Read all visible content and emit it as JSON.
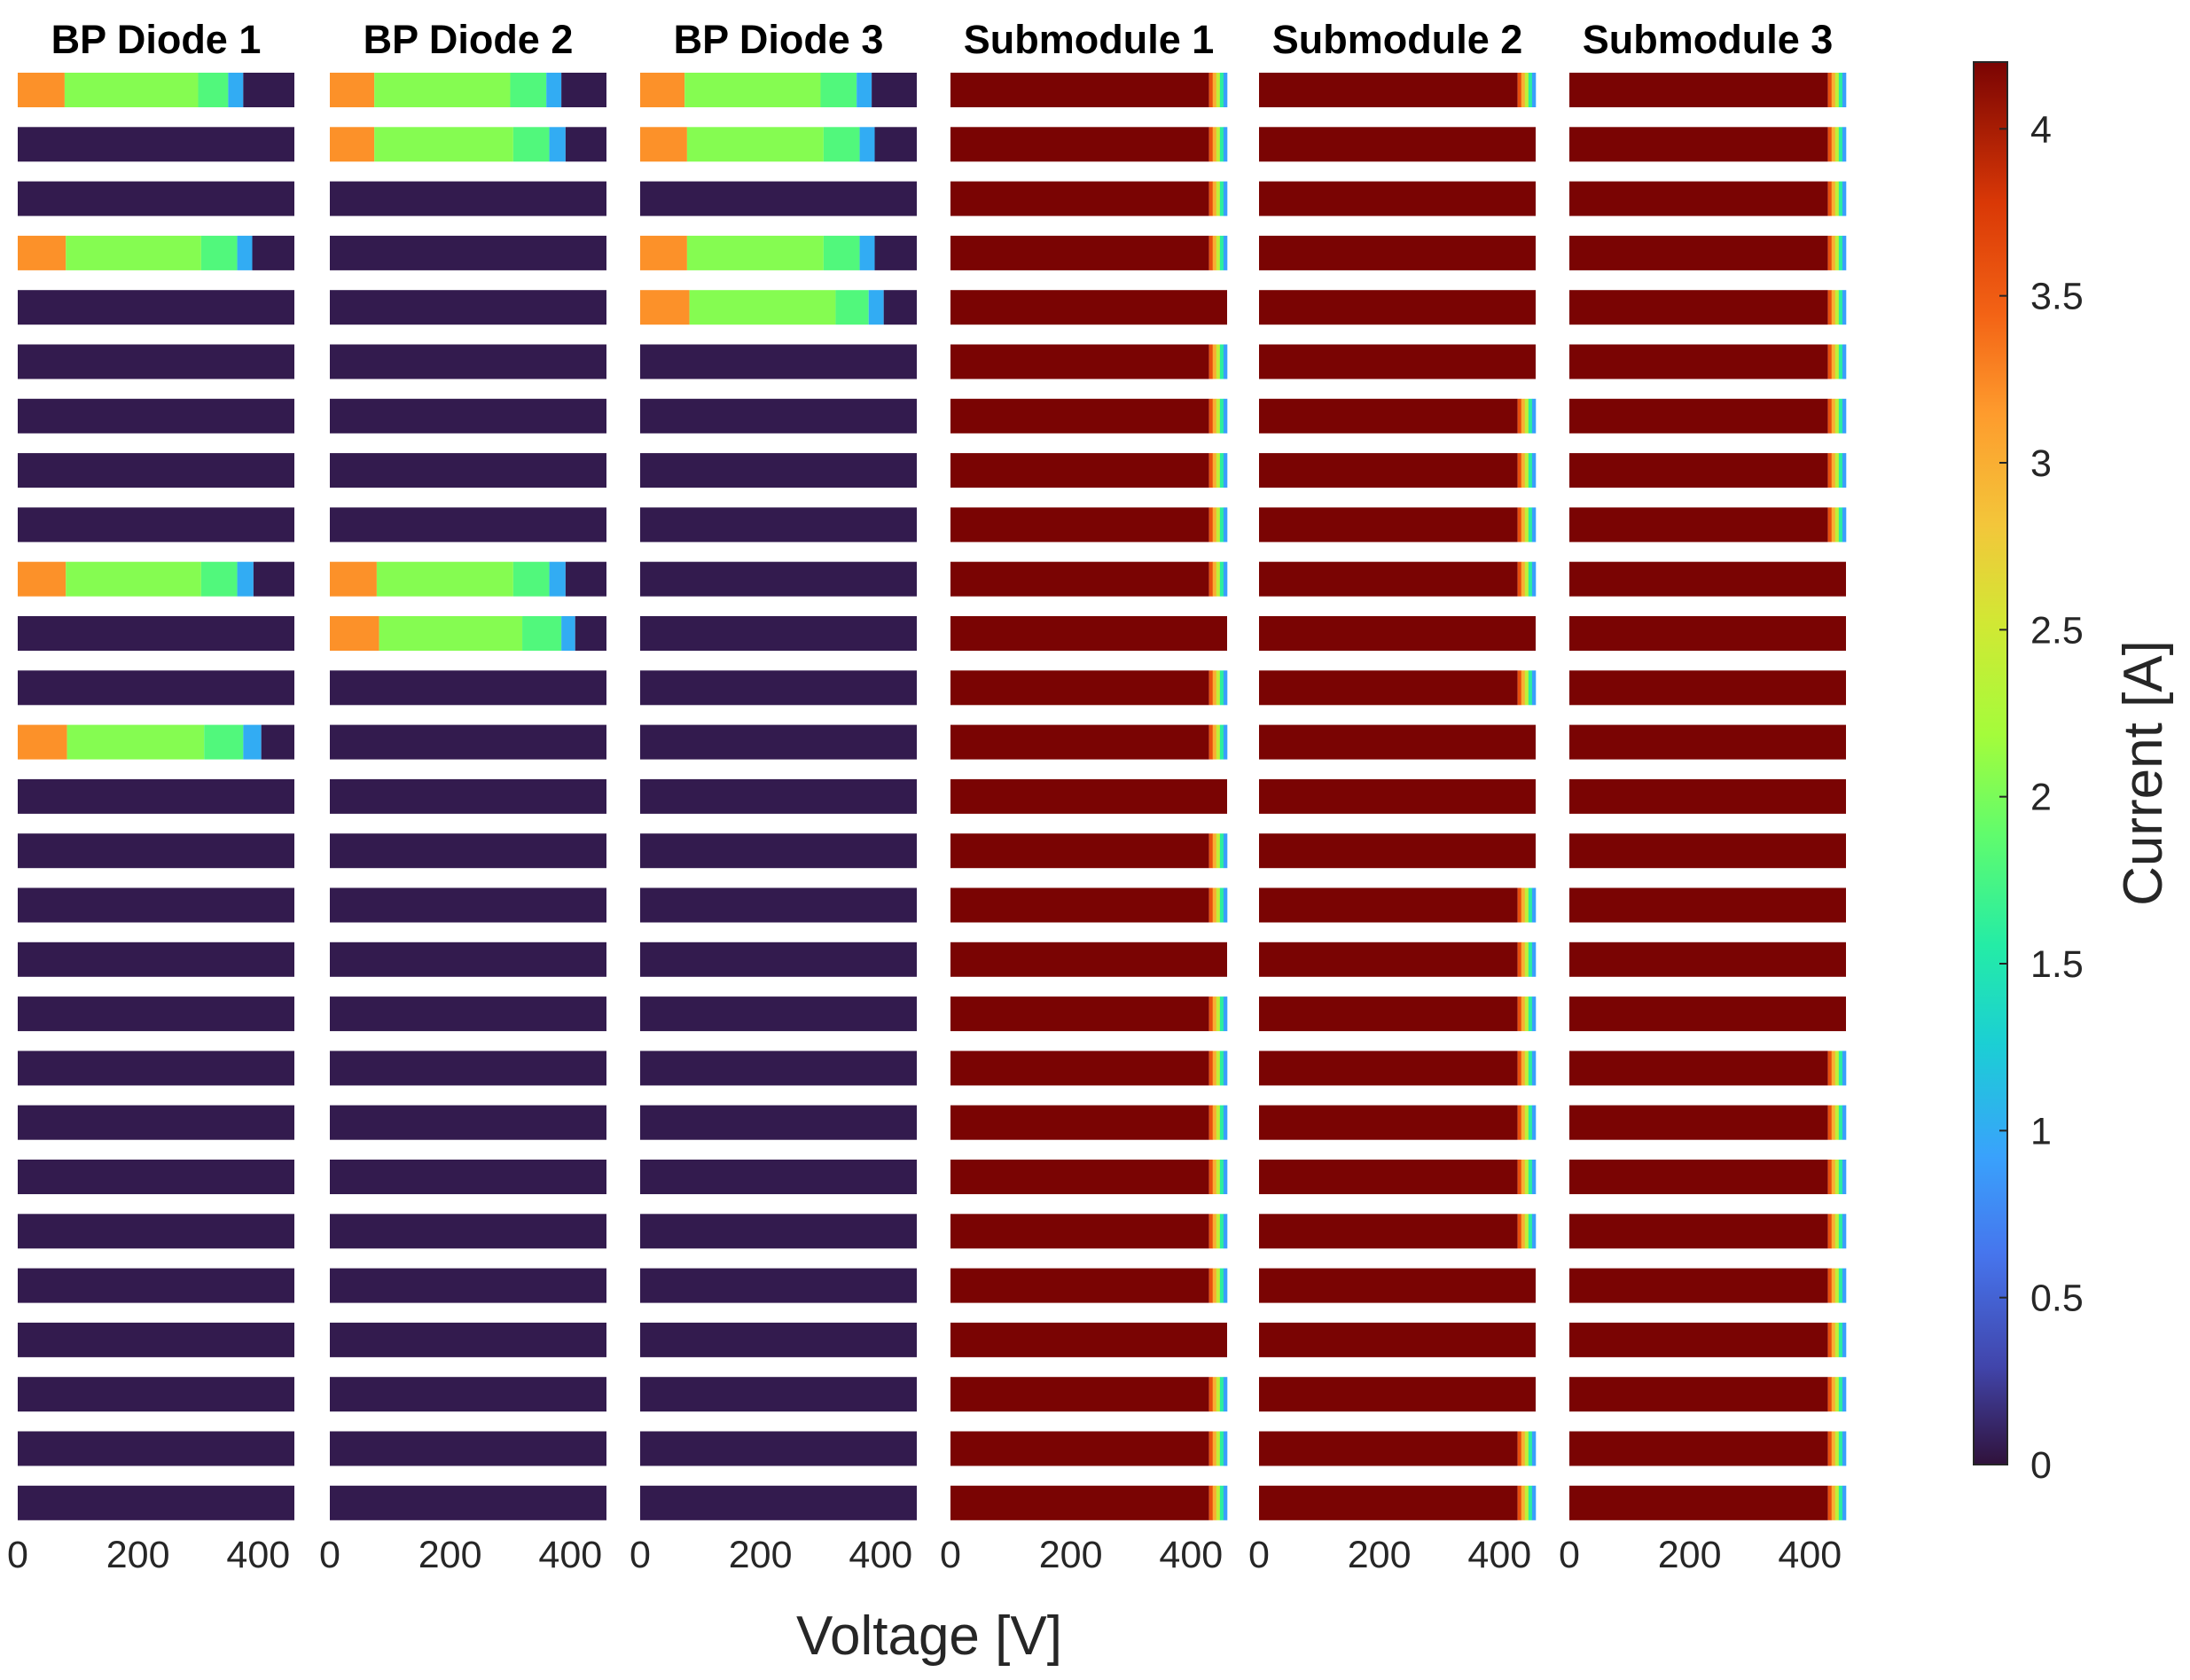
{
  "chart_data": {
    "type": "heatmap",
    "xlabel": "Voltage [V]",
    "colorbar": {
      "label": "Current [A]",
      "range": [
        0,
        4.2
      ],
      "ticks": [
        "0",
        "0.5",
        "1",
        "1.5",
        "2",
        "2.5",
        "3",
        "3.5",
        "4"
      ],
      "colormap": "turbo"
    },
    "x_range": [
      0,
      460
    ],
    "x_ticks": [
      "0",
      "200",
      "400"
    ],
    "rows_per_panel": 27,
    "panels": [
      {
        "title": "BP Diode 1",
        "kind": "diode",
        "active_rows": [
          0,
          3,
          9,
          12
        ],
        "rows": [
          {
            "row": 0,
            "segments": [
              {
                "v0": 0,
                "v1": 78,
                "current": 3.2
              },
              {
                "v0": 78,
                "v1": 300,
                "current": 2.05
              },
              {
                "v0": 300,
                "v1": 350,
                "current": 1.8
              },
              {
                "v0": 350,
                "v1": 375,
                "current": 1.0
              },
              {
                "v0": 375,
                "v1": 460,
                "current": 0.05
              }
            ]
          },
          {
            "row": 3,
            "segments": [
              {
                "v0": 0,
                "v1": 80,
                "current": 3.2
              },
              {
                "v0": 80,
                "v1": 305,
                "current": 2.05
              },
              {
                "v0": 305,
                "v1": 365,
                "current": 1.8
              },
              {
                "v0": 365,
                "v1": 390,
                "current": 1.0
              },
              {
                "v0": 390,
                "v1": 460,
                "current": 0.05
              }
            ]
          },
          {
            "row": 9,
            "segments": [
              {
                "v0": 0,
                "v1": 80,
                "current": 3.2
              },
              {
                "v0": 80,
                "v1": 305,
                "current": 2.05
              },
              {
                "v0": 305,
                "v1": 365,
                "current": 1.8
              },
              {
                "v0": 365,
                "v1": 392,
                "current": 1.0
              },
              {
                "v0": 392,
                "v1": 460,
                "current": 0.05
              }
            ]
          },
          {
            "row": 12,
            "segments": [
              {
                "v0": 0,
                "v1": 82,
                "current": 3.2
              },
              {
                "v0": 82,
                "v1": 310,
                "current": 2.05
              },
              {
                "v0": 310,
                "v1": 375,
                "current": 1.8
              },
              {
                "v0": 375,
                "v1": 405,
                "current": 1.0
              },
              {
                "v0": 405,
                "v1": 460,
                "current": 0.05
              }
            ]
          }
        ]
      },
      {
        "title": "BP Diode 2",
        "kind": "diode",
        "active_rows": [
          0,
          1,
          9,
          10
        ],
        "rows": [
          {
            "row": 0,
            "segments": [
              {
                "v0": 0,
                "v1": 74,
                "current": 3.2
              },
              {
                "v0": 74,
                "v1": 300,
                "current": 2.05
              },
              {
                "v0": 300,
                "v1": 360,
                "current": 1.8
              },
              {
                "v0": 360,
                "v1": 385,
                "current": 1.0
              },
              {
                "v0": 385,
                "v1": 460,
                "current": 0.05
              }
            ]
          },
          {
            "row": 1,
            "segments": [
              {
                "v0": 0,
                "v1": 74,
                "current": 3.2
              },
              {
                "v0": 74,
                "v1": 305,
                "current": 2.05
              },
              {
                "v0": 305,
                "v1": 365,
                "current": 1.8
              },
              {
                "v0": 365,
                "v1": 392,
                "current": 1.0
              },
              {
                "v0": 392,
                "v1": 460,
                "current": 0.05
              }
            ]
          },
          {
            "row": 9,
            "segments": [
              {
                "v0": 0,
                "v1": 78,
                "current": 3.2
              },
              {
                "v0": 78,
                "v1": 305,
                "current": 2.05
              },
              {
                "v0": 305,
                "v1": 365,
                "current": 1.8
              },
              {
                "v0": 365,
                "v1": 392,
                "current": 1.0
              },
              {
                "v0": 392,
                "v1": 460,
                "current": 0.05
              }
            ]
          },
          {
            "row": 10,
            "segments": [
              {
                "v0": 0,
                "v1": 82,
                "current": 3.2
              },
              {
                "v0": 82,
                "v1": 320,
                "current": 2.05
              },
              {
                "v0": 320,
                "v1": 385,
                "current": 1.8
              },
              {
                "v0": 385,
                "v1": 408,
                "current": 1.0
              },
              {
                "v0": 408,
                "v1": 460,
                "current": 0.05
              }
            ]
          }
        ]
      },
      {
        "title": "BP Diode 3",
        "kind": "diode",
        "active_rows": [
          0,
          1,
          3,
          4
        ],
        "rows": [
          {
            "row": 0,
            "segments": [
              {
                "v0": 0,
                "v1": 74,
                "current": 3.2
              },
              {
                "v0": 74,
                "v1": 300,
                "current": 2.05
              },
              {
                "v0": 300,
                "v1": 360,
                "current": 1.8
              },
              {
                "v0": 360,
                "v1": 385,
                "current": 1.0
              },
              {
                "v0": 385,
                "v1": 460,
                "current": 0.05
              }
            ]
          },
          {
            "row": 1,
            "segments": [
              {
                "v0": 0,
                "v1": 78,
                "current": 3.2
              },
              {
                "v0": 78,
                "v1": 305,
                "current": 2.05
              },
              {
                "v0": 305,
                "v1": 365,
                "current": 1.8
              },
              {
                "v0": 365,
                "v1": 390,
                "current": 1.0
              },
              {
                "v0": 390,
                "v1": 460,
                "current": 0.05
              }
            ]
          },
          {
            "row": 3,
            "segments": [
              {
                "v0": 0,
                "v1": 78,
                "current": 3.2
              },
              {
                "v0": 78,
                "v1": 305,
                "current": 2.05
              },
              {
                "v0": 305,
                "v1": 365,
                "current": 1.8
              },
              {
                "v0": 365,
                "v1": 390,
                "current": 1.0
              },
              {
                "v0": 390,
                "v1": 460,
                "current": 0.05
              }
            ]
          },
          {
            "row": 4,
            "segments": [
              {
                "v0": 0,
                "v1": 82,
                "current": 3.2
              },
              {
                "v0": 82,
                "v1": 325,
                "current": 2.05
              },
              {
                "v0": 325,
                "v1": 380,
                "current": 1.8
              },
              {
                "v0": 380,
                "v1": 405,
                "current": 1.0
              },
              {
                "v0": 405,
                "v1": 460,
                "current": 0.05
              }
            ]
          }
        ]
      },
      {
        "title": "Submodule 1",
        "kind": "submodule",
        "edge_rows": [
          0,
          1,
          2,
          3,
          5,
          6,
          7,
          8,
          9,
          11,
          12,
          14,
          15,
          17,
          18,
          19,
          20,
          21,
          22,
          24,
          25,
          26
        ],
        "edge_start_v": 430,
        "full_current": 4.2
      },
      {
        "title": "Submodule 2",
        "kind": "submodule",
        "edge_rows": [
          0,
          6,
          7,
          8,
          9,
          11,
          15,
          16,
          17,
          18,
          19,
          20,
          21,
          25,
          26
        ],
        "edge_start_v": 430,
        "full_current": 4.2
      },
      {
        "title": "Submodule 3",
        "kind": "submodule",
        "edge_rows": [
          0,
          1,
          2,
          3,
          4,
          5,
          6,
          7,
          8,
          18,
          19,
          20,
          21,
          22,
          23,
          24,
          25,
          26
        ],
        "edge_start_v": 430,
        "full_current": 4.2
      }
    ]
  },
  "colors": {
    "background": "#ffffff",
    "text": "#262626"
  }
}
